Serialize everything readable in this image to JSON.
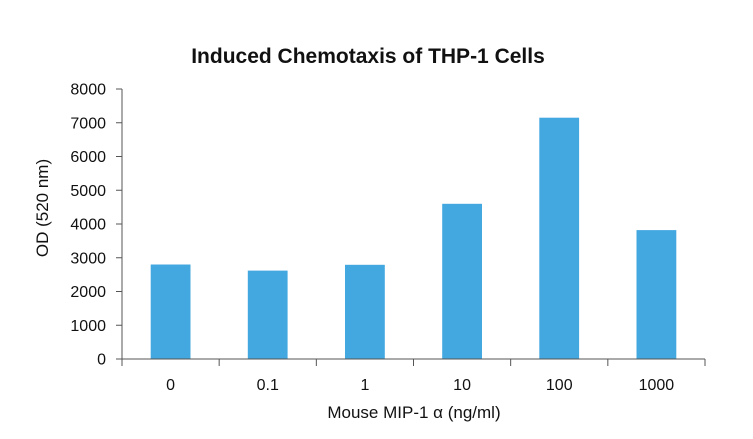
{
  "chart_data": {
    "type": "bar",
    "title": "Induced Chemotaxis of THP-1 Cells",
    "xlabel": "Mouse MIP-1 α (ng/ml)",
    "ylabel": "OD (520 nm)",
    "categories": [
      "0",
      "0.1",
      "1",
      "10",
      "100",
      "1000"
    ],
    "values": [
      2800,
      2620,
      2790,
      4600,
      7150,
      3820
    ],
    "ylim": [
      0,
      8000
    ],
    "yticks": [
      0,
      1000,
      2000,
      3000,
      4000,
      5000,
      6000,
      7000,
      8000
    ],
    "grid": false,
    "legend": "none",
    "bar_color": "#44a8e0",
    "axis_color": "#555555"
  }
}
